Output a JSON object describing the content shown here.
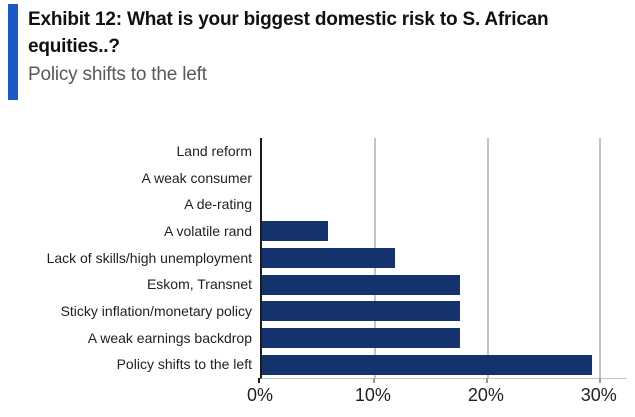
{
  "header": {
    "title": "Exhibit 12: What is your biggest domestic risk to S. African equities..?",
    "subtitle": "Policy shifts to the left",
    "accent_color": "#1b59c8"
  },
  "chart_data": {
    "type": "bar",
    "orientation": "horizontal",
    "title": "Exhibit 12: What is your biggest domestic risk to S. African equities..?",
    "subtitle": "Policy shifts to the left",
    "categories": [
      "Land reform",
      "A weak consumer",
      "A de-rating",
      "A volatile rand",
      "Lack of skills/high unemployment",
      "Eskom, Transnet",
      "Sticky inflation/monetary policy",
      "A weak earnings backdrop",
      "Policy shifts to the left"
    ],
    "values": [
      0,
      0,
      0,
      5.9,
      11.8,
      17.6,
      17.6,
      17.6,
      29.4
    ],
    "unit": "%",
    "xlabel": "",
    "ylabel": "",
    "x_ticks": [
      "0%",
      "10%",
      "20%",
      "30%"
    ],
    "x_tick_values": [
      0,
      10,
      20,
      30
    ],
    "xlim": [
      0,
      32.5
    ],
    "grid": "vertical",
    "legend": "none",
    "bar_color": "#14336e",
    "gridline_color": "#c3c3c3",
    "axis_color": "#1a1a1a"
  }
}
